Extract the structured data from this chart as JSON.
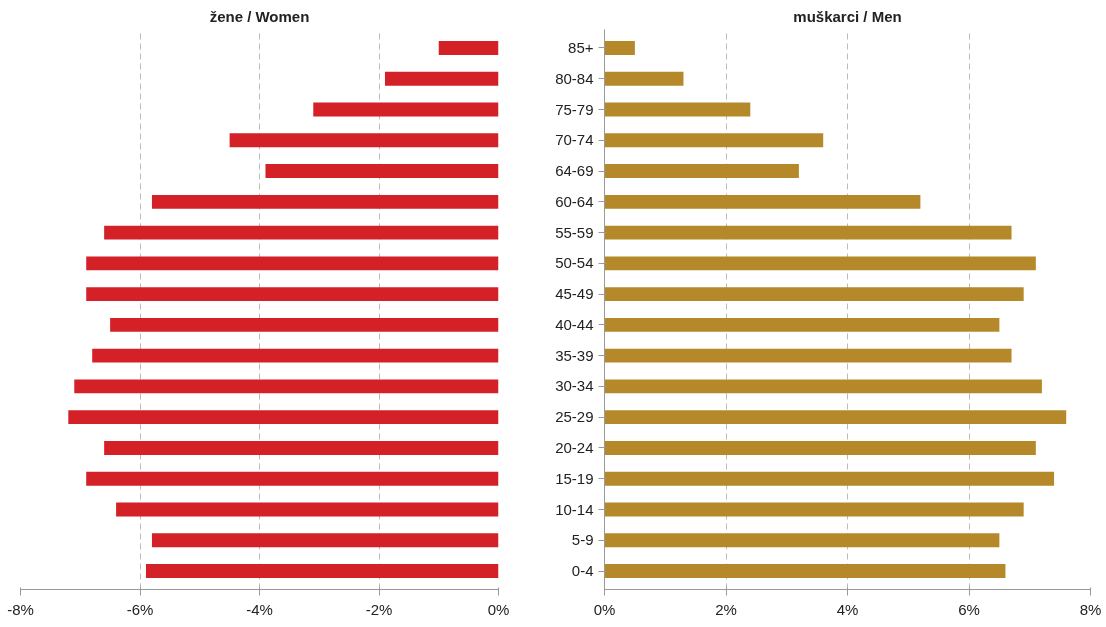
{
  "chart_data": [
    {
      "type": "bar",
      "orientation": "horizontal",
      "title": "žene / Women",
      "categories": [
        null,
        null,
        null,
        null,
        null,
        null,
        null,
        null,
        null,
        null,
        null,
        null,
        null,
        null,
        null,
        null,
        null,
        null
      ],
      "values": [
        -1.0,
        -1.9,
        -3.1,
        -4.5,
        -3.9,
        -5.8,
        -6.6,
        -6.9,
        -6.9,
        -6.5,
        -6.8,
        -7.1,
        -7.2,
        -6.6,
        -6.9,
        -6.4,
        -5.8,
        -5.9
      ],
      "color": "#d42027",
      "xlim": [
        -8,
        0
      ],
      "xticks": [
        {
          "value": -8,
          "label": "-8%"
        },
        {
          "value": -6,
          "label": "-6%"
        },
        {
          "value": -4,
          "label": "-4%"
        },
        {
          "value": -2,
          "label": "-2%"
        },
        {
          "value": 0,
          "label": "0%"
        }
      ],
      "grid": "x",
      "legend": false,
      "tick_labels": "x"
    },
    {
      "type": "bar",
      "orientation": "horizontal",
      "title": "muškarci / Men",
      "categories": [
        "85+",
        "80-84",
        "75-79",
        "70-74",
        "64-69",
        "60-64",
        "55-59",
        "50-54",
        "45-49",
        "40-44",
        "35-39",
        "30-34",
        "25-29",
        "20-24",
        "15-19",
        "10-14",
        "5-9",
        "0-4"
      ],
      "values": [
        0.5,
        1.3,
        2.4,
        3.6,
        3.2,
        5.2,
        6.7,
        7.1,
        6.9,
        6.5,
        6.7,
        7.2,
        7.6,
        7.1,
        7.4,
        6.9,
        6.5,
        6.6
      ],
      "color": "#b5892a",
      "xlim": [
        0,
        8
      ],
      "xticks": [
        {
          "value": 0,
          "label": "0%"
        },
        {
          "value": 2,
          "label": "2%"
        },
        {
          "value": 4,
          "label": "4%"
        },
        {
          "value": 6,
          "label": "6%"
        },
        {
          "value": 8,
          "label": "8%"
        }
      ],
      "grid": "x",
      "legend": false
    }
  ]
}
